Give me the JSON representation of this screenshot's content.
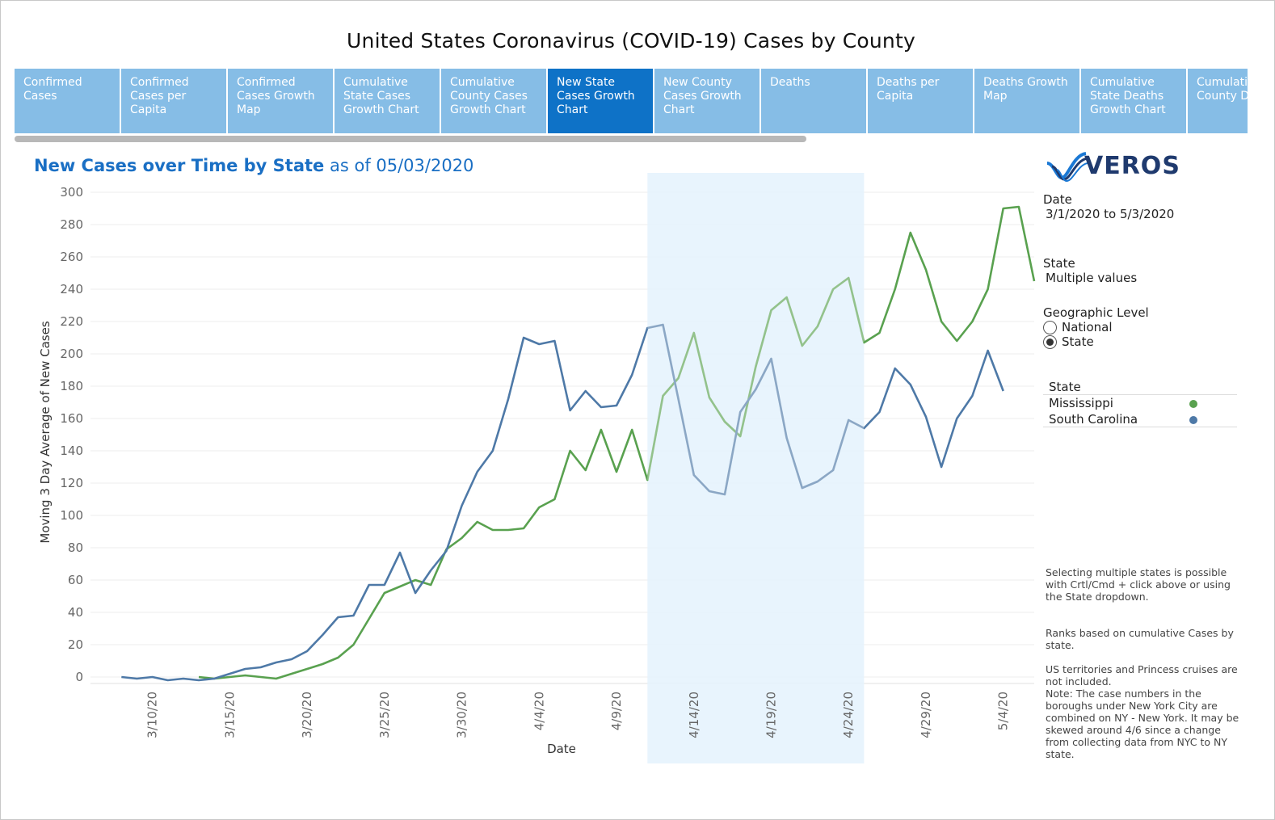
{
  "header": {
    "title": "United States Coronavirus (COVID-19) Cases by County"
  },
  "tabs": [
    {
      "label": "Confirmed Cases",
      "active": false
    },
    {
      "label": "Confirmed Cases per Capita",
      "active": false
    },
    {
      "label": "Confirmed Cases Growth Map",
      "active": false
    },
    {
      "label": "Cumulative State Cases Growth Chart",
      "active": false
    },
    {
      "label": "Cumulative County Cases Growth Chart",
      "active": false
    },
    {
      "label": "New State Cases Growth Chart",
      "active": true
    },
    {
      "label": "New County Cases Growth Chart",
      "active": false
    },
    {
      "label": "Deaths",
      "active": false
    },
    {
      "label": "Deaths per Capita",
      "active": false
    },
    {
      "label": "Deaths Growth Map",
      "active": false
    },
    {
      "label": "Cumulative State Deaths Growth Chart",
      "active": false
    },
    {
      "label": "Cumulative County De...",
      "active": false
    }
  ],
  "chart_title": {
    "main": "New Cases over Time by State",
    "suffix": "as of 05/03/2020"
  },
  "logo": {
    "text": "Veros",
    "icon": "veros-wave-icon"
  },
  "filters": {
    "date": {
      "label": "Date",
      "value": "3/1/2020 to 5/3/2020"
    },
    "state": {
      "label": "State",
      "value": "Multiple values"
    },
    "geo": {
      "label": "Geographic Level",
      "options": [
        {
          "label": "National",
          "selected": false
        },
        {
          "label": "State",
          "selected": true
        }
      ]
    }
  },
  "legend": {
    "title": "State",
    "items": [
      {
        "label": "Mississippi",
        "color": "#59a14f"
      },
      {
        "label": "South Carolina",
        "color": "#4e79a7"
      }
    ]
  },
  "notes": {
    "n1": "Selecting multiple states is possible with Crtl/Cmd + click above or using the State dropdown.",
    "n2": "Ranks based on cumulative Cases by state.",
    "n3": "US territories and Princess cruises are not included.",
    "n4": "Note: The case numbers in the boroughs under New York City are combined on NY - New York. It may be skewed around 4/6 since a change from collecting data from NYC to NY state."
  },
  "chart_data": {
    "type": "line",
    "xlabel": "Date",
    "ylabel": "Moving 3 Day Average of New Cases",
    "xlim": [
      "2020-03-06",
      "2020-05-06"
    ],
    "ylim": [
      -4,
      300
    ],
    "yticks": [
      0,
      20,
      40,
      60,
      80,
      100,
      120,
      140,
      160,
      180,
      200,
      220,
      240,
      260,
      280,
      300
    ],
    "xticks": [
      "2020-03-10",
      "2020-03-15",
      "2020-03-20",
      "2020-03-25",
      "2020-03-30",
      "2020-04-04",
      "2020-04-09",
      "2020-04-14",
      "2020-04-19",
      "2020-04-24",
      "2020-04-29",
      "2020-05-04"
    ],
    "xtick_labels": [
      "3/10/20",
      "3/15/20",
      "3/20/20",
      "3/25/20",
      "3/30/20",
      "4/4/20",
      "4/9/20",
      "4/14/20",
      "4/19/20",
      "4/24/20",
      "4/29/20",
      "5/4/20"
    ],
    "highlight_range": [
      "2020-04-11",
      "2020-04-25"
    ],
    "series": [
      {
        "name": "Mississippi",
        "color": "#59a14f",
        "start": "2020-03-13",
        "values": [
          0,
          -1,
          0,
          1,
          0,
          -1,
          2,
          5,
          8,
          12,
          20,
          36,
          52,
          56,
          60,
          57,
          79,
          86,
          96,
          91,
          91,
          92,
          105,
          110,
          140,
          128,
          153,
          127,
          153,
          122,
          174,
          185,
          213,
          173,
          158,
          149,
          192,
          227,
          235,
          205,
          217,
          240,
          247,
          207,
          213,
          240,
          275,
          252,
          220,
          208,
          220,
          240,
          290,
          291,
          245
        ]
      },
      {
        "name": "South Carolina",
        "color": "#4e79a7",
        "start": "2020-03-08",
        "values": [
          0,
          -1,
          0,
          -2,
          -1,
          -2,
          -1,
          2,
          5,
          6,
          9,
          11,
          16,
          26,
          37,
          38,
          57,
          57,
          77,
          52,
          66,
          78,
          106,
          127,
          140,
          172,
          210,
          206,
          208,
          165,
          177,
          167,
          168,
          187,
          216,
          218,
          172,
          125,
          115,
          113,
          164,
          178,
          197,
          148,
          117,
          121,
          128,
          159,
          154,
          164,
          191,
          181,
          161,
          130,
          160,
          174,
          202,
          177
        ]
      }
    ]
  }
}
